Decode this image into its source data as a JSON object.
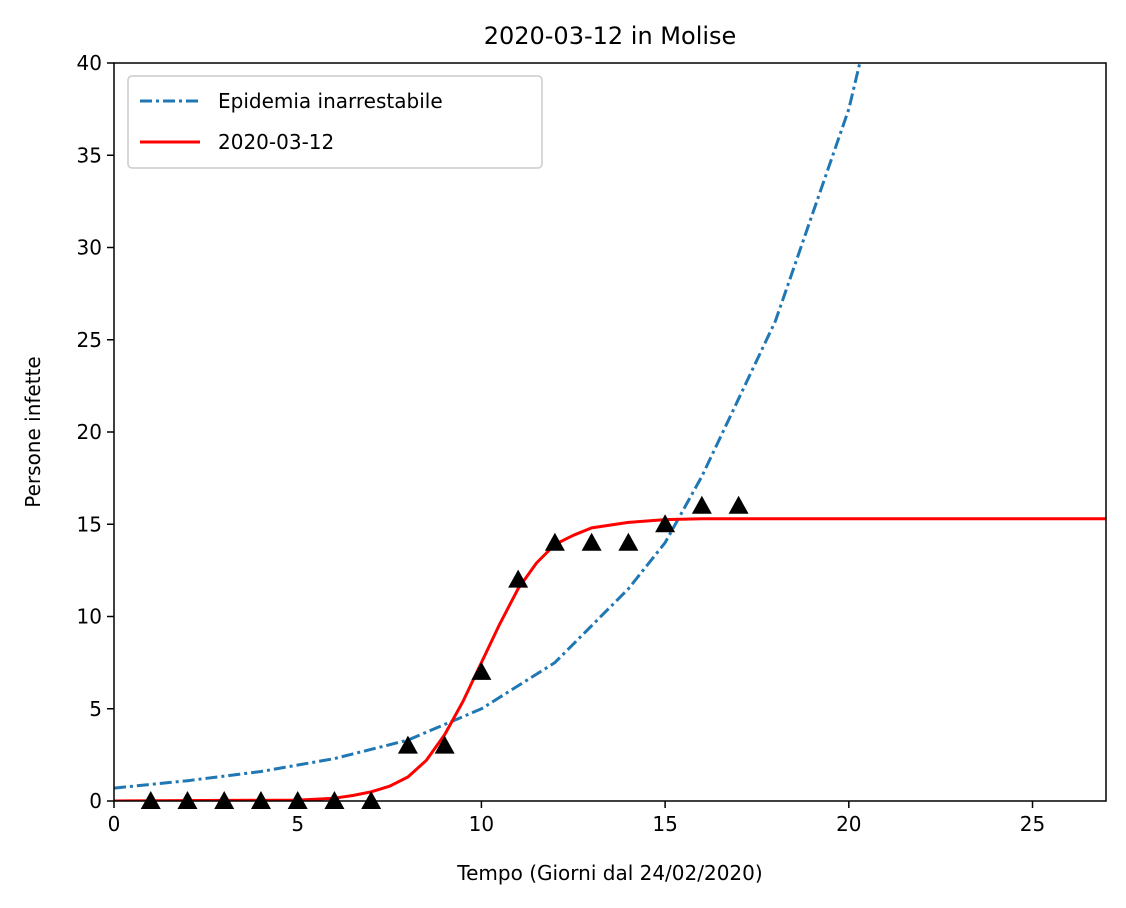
{
  "chart_data": {
    "type": "line",
    "title": "2020-03-12 in Molise",
    "xlabel": "Tempo (Giorni dal 24/02/2020)",
    "ylabel": "Persone infette",
    "xlim": [
      0,
      27
    ],
    "ylim": [
      0,
      40
    ],
    "x_ticks": [
      "0",
      "5",
      "10",
      "15",
      "20",
      "25"
    ],
    "y_ticks": [
      "0",
      "5",
      "10",
      "15",
      "20",
      "25",
      "30",
      "35",
      "40"
    ],
    "legend_position": "top-left",
    "grid": false,
    "series": [
      {
        "name": "Epidemia inarrestabile",
        "style": "dash-dot",
        "color": "#1f77b4",
        "x": [
          0,
          2,
          4,
          6,
          8,
          10,
          12,
          14,
          15,
          16,
          18,
          20,
          20.3
        ],
        "y": [
          0.7,
          1.1,
          1.6,
          2.3,
          3.3,
          5.0,
          7.5,
          11.5,
          14.0,
          17.6,
          26.0,
          37.5,
          40.0
        ]
      },
      {
        "name": "2020-03-12",
        "style": "solid",
        "color": "#ff0000",
        "x": [
          0,
          5,
          6,
          6.5,
          7,
          7.5,
          8,
          8.5,
          9,
          9.5,
          10,
          10.5,
          11,
          11.5,
          12,
          12.5,
          13,
          14,
          15,
          16,
          18,
          20,
          27
        ],
        "y": [
          0,
          0.05,
          0.15,
          0.3,
          0.5,
          0.8,
          1.3,
          2.2,
          3.6,
          5.4,
          7.5,
          9.6,
          11.5,
          12.9,
          13.9,
          14.4,
          14.8,
          15.1,
          15.25,
          15.3,
          15.3,
          15.3,
          15.3
        ]
      },
      {
        "name": "",
        "style": "markers",
        "marker": "triangle",
        "color": "#000000",
        "x": [
          1,
          2,
          3,
          4,
          5,
          6,
          7,
          8,
          9,
          10,
          11,
          12,
          13,
          14,
          15,
          16,
          17
        ],
        "y": [
          0,
          0,
          0,
          0,
          0,
          0,
          0,
          3,
          3,
          7,
          12,
          14,
          14,
          14,
          15,
          16,
          16
        ]
      }
    ]
  }
}
